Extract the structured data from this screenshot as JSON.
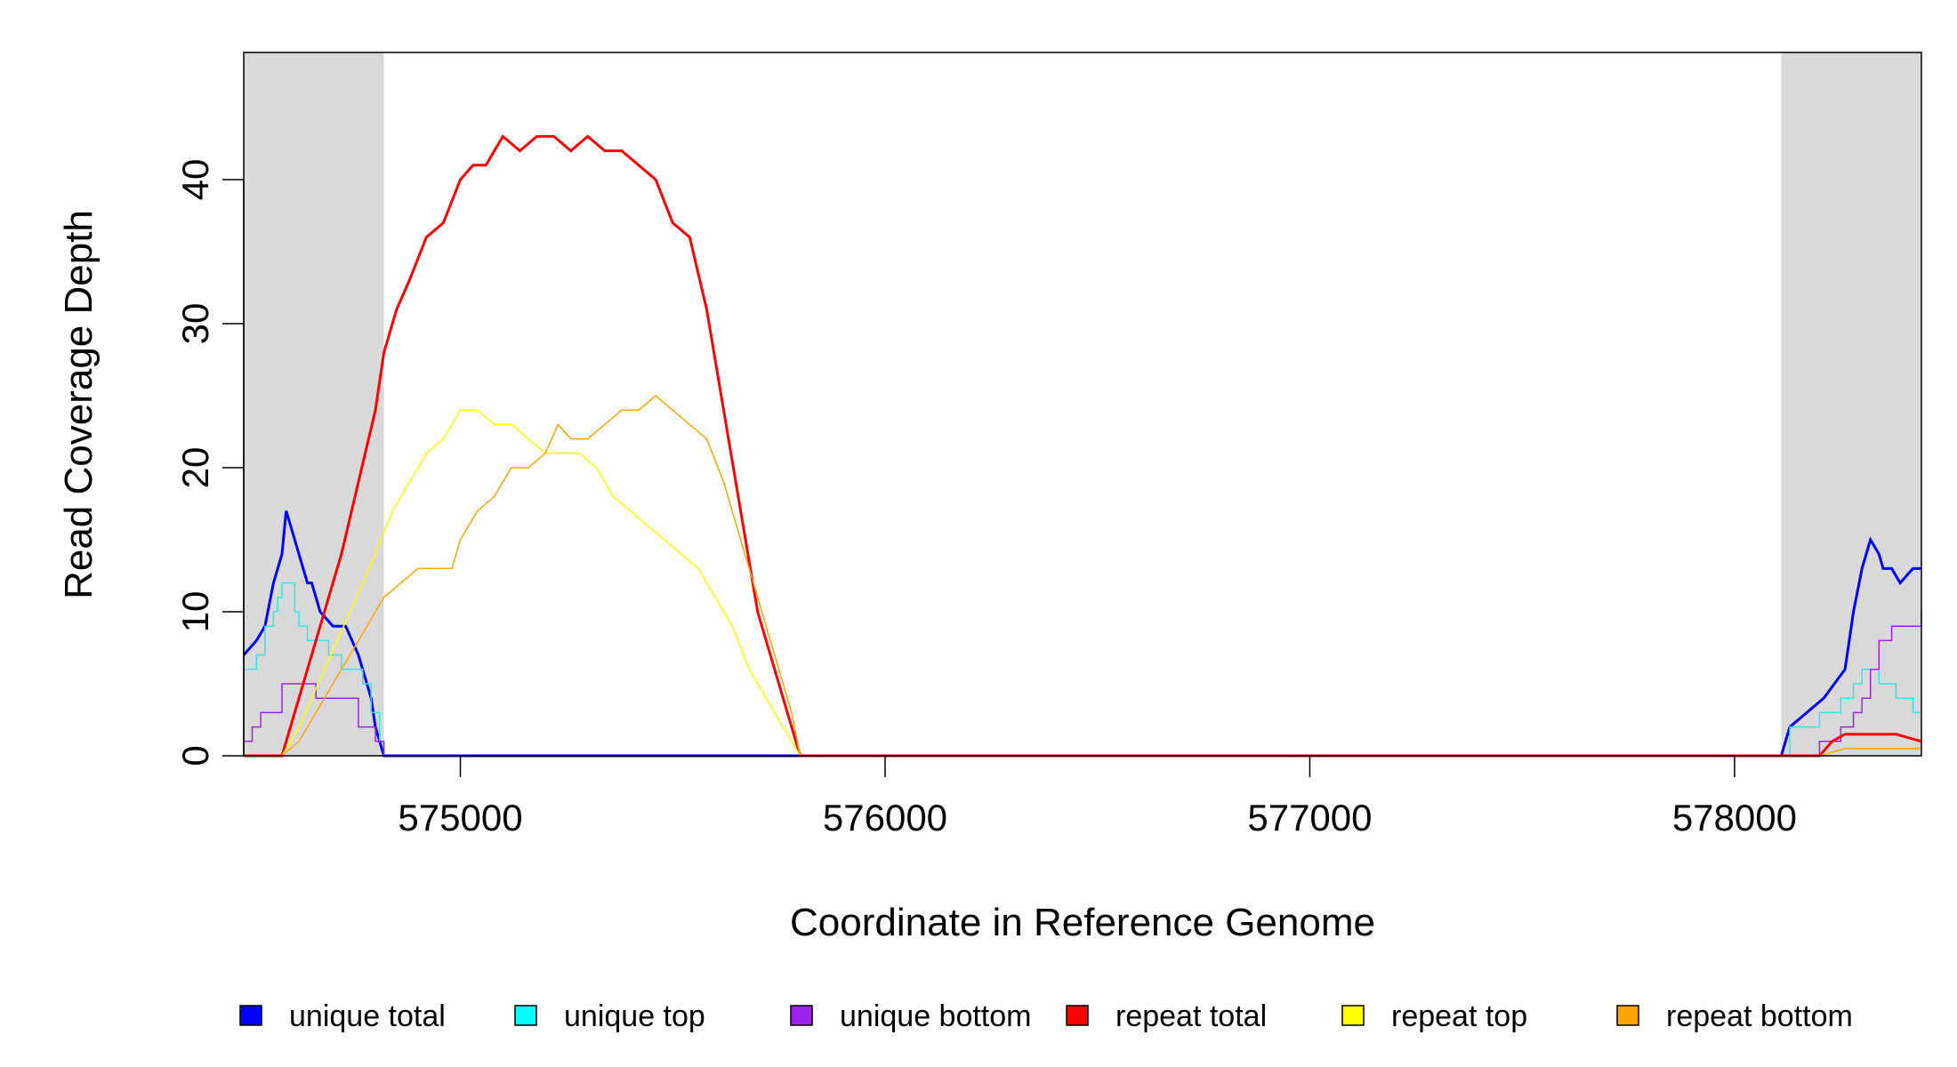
{
  "chart_data": {
    "type": "line",
    "title": "",
    "xlabel": "Coordinate in Reference Genome",
    "ylabel": "Read Coverage Depth",
    "xlim": [
      574490,
      578440
    ],
    "ylim": [
      0,
      48
    ],
    "x_ticks": [
      575000,
      576000,
      577000,
      578000
    ],
    "x_tick_labels": [
      "575000",
      "576000",
      "577000",
      "578000"
    ],
    "y_ticks": [
      0,
      10,
      20,
      30,
      40
    ],
    "y_tick_labels": [
      "0",
      "10",
      "20",
      "30",
      "40"
    ],
    "grid": false,
    "legend_position": "bottom",
    "shaded_regions": [
      {
        "x_start": 574490,
        "x_end": 574820,
        "color": "#d9d9d9"
      },
      {
        "x_start": 578110,
        "x_end": 578440,
        "color": "#d9d9d9"
      }
    ],
    "series": [
      {
        "name": "unique total",
        "color": "#0000ff",
        "stroke_width": 3,
        "x": [
          574490,
          574520,
          574540,
          574560,
          574580,
          574590,
          574610,
          574630,
          574640,
          574650,
          574670,
          574700,
          574730,
          574760,
          574770,
          574790,
          574800,
          574810,
          574820,
          574830,
          578110,
          578130,
          578210,
          578260,
          578280,
          578300,
          578320,
          578340,
          578350,
          578360,
          578370,
          578390,
          578420,
          578440
        ],
        "y": [
          7,
          8,
          9,
          12,
          14,
          17,
          15,
          13,
          12,
          12,
          10,
          9,
          9,
          7,
          6,
          4,
          2,
          1,
          0,
          0,
          0,
          2,
          4,
          6,
          10,
          13,
          15,
          14,
          13,
          13,
          13,
          12,
          13,
          13
        ]
      },
      {
        "name": "unique top",
        "color": "#33e6e6",
        "stroke_width": 1.5,
        "x": [
          574490,
          574520,
          574540,
          574560,
          574570,
          574580,
          574590,
          574610,
          574620,
          574640,
          574660,
          574690,
          574720,
          574750,
          574770,
          574790,
          574810,
          574820,
          578110,
          578130,
          578200,
          578250,
          578280,
          578300,
          578320,
          578340,
          578360,
          578380,
          578400,
          578420,
          578440
        ],
        "y": [
          6,
          7,
          9,
          10,
          11,
          12,
          12,
          10,
          9,
          8,
          8,
          7,
          6,
          6,
          5,
          3,
          1,
          0,
          0,
          2,
          3,
          4,
          5,
          6,
          6,
          5,
          5,
          4,
          4,
          3,
          3
        ],
        "step": true
      },
      {
        "name": "unique bottom",
        "color": "#a020f0",
        "stroke_width": 1.5,
        "x": [
          574490,
          574510,
          574530,
          574550,
          574580,
          574630,
          574660,
          574690,
          574720,
          574760,
          574800,
          574820,
          578110,
          578170,
          578200,
          578250,
          578280,
          578300,
          578320,
          578340,
          578370,
          578420,
          578440
        ],
        "y": [
          1,
          2,
          3,
          3,
          5,
          5,
          4,
          4,
          4,
          2,
          1,
          0,
          0,
          0,
          1,
          2,
          3,
          4,
          6,
          8,
          9,
          9,
          10
        ],
        "step": true
      },
      {
        "name": "repeat total",
        "color": "#ff0000",
        "stroke_width": 3,
        "x": [
          574490,
          574580,
          574600,
          574640,
          574680,
          574720,
          574760,
          574800,
          574820,
          574850,
          574880,
          574920,
          574960,
          575000,
          575030,
          575060,
          575100,
          575140,
          575180,
          575220,
          575260,
          575300,
          575340,
          575380,
          575420,
          575460,
          575500,
          575540,
          575580,
          575620,
          575660,
          575700,
          575740,
          575780,
          575800,
          578110,
          578200,
          578230,
          578260,
          578310,
          578380,
          578440
        ],
        "y": [
          0,
          0,
          2,
          6,
          10,
          14,
          19,
          24,
          28,
          31,
          33,
          36,
          37,
          40,
          41,
          41,
          43,
          42,
          43,
          43,
          42,
          43,
          42,
          42,
          41,
          40,
          37,
          36,
          31,
          24,
          17,
          10,
          6,
          2,
          0,
          0,
          0,
          1,
          1.5,
          1.5,
          1.5,
          1
        ]
      },
      {
        "name": "repeat top",
        "color": "#ffff00",
        "stroke_width": 1.5,
        "x": [
          574490,
          574580,
          574620,
          574680,
          574740,
          574800,
          574840,
          574880,
          574920,
          574960,
          575000,
          575040,
          575080,
          575120,
          575160,
          575200,
          575240,
          575280,
          575320,
          575360,
          575400,
          575440,
          575480,
          575520,
          575560,
          575600,
          575640,
          575680,
          575720,
          575760,
          575800,
          578110,
          578200,
          578260,
          578320,
          578380,
          578440
        ],
        "y": [
          0,
          0,
          2,
          6,
          10,
          14,
          17,
          19,
          21,
          22,
          24,
          24,
          23,
          23,
          22,
          21,
          21,
          21,
          20,
          18,
          17,
          16,
          15,
          14,
          13,
          11,
          9,
          6,
          4,
          2,
          0,
          0,
          0,
          0.5,
          0.5,
          0.5,
          0.5
        ]
      },
      {
        "name": "repeat bottom",
        "color": "#ffa500",
        "stroke_width": 1.5,
        "x": [
          574490,
          574580,
          574620,
          574660,
          574700,
          574740,
          574780,
          574820,
          574860,
          574900,
          574940,
          574980,
          575000,
          575040,
          575080,
          575120,
          575160,
          575200,
          575230,
          575260,
          575300,
          575340,
          575380,
          575420,
          575460,
          575500,
          575540,
          575580,
          575620,
          575660,
          575700,
          575740,
          575780,
          575800,
          578110,
          578200,
          578260,
          578320,
          578380,
          578440
        ],
        "y": [
          0,
          0,
          1,
          3,
          5,
          7,
          9,
          11,
          12,
          13,
          13,
          13,
          15,
          17,
          18,
          20,
          20,
          21,
          23,
          22,
          22,
          23,
          24,
          24,
          25,
          24,
          23,
          22,
          19,
          15,
          11,
          7,
          3,
          0,
          0,
          0,
          0.5,
          0.5,
          0.5,
          0.5
        ]
      }
    ],
    "legend": [
      {
        "label": "unique total",
        "color": "#0000ff"
      },
      {
        "label": "unique top",
        "color": "#00ffff"
      },
      {
        "label": "unique bottom",
        "color": "#a020f0"
      },
      {
        "label": "repeat total",
        "color": "#ff0000"
      },
      {
        "label": "repeat top",
        "color": "#ffff00"
      },
      {
        "label": "repeat bottom",
        "color": "#ffa500"
      }
    ]
  }
}
